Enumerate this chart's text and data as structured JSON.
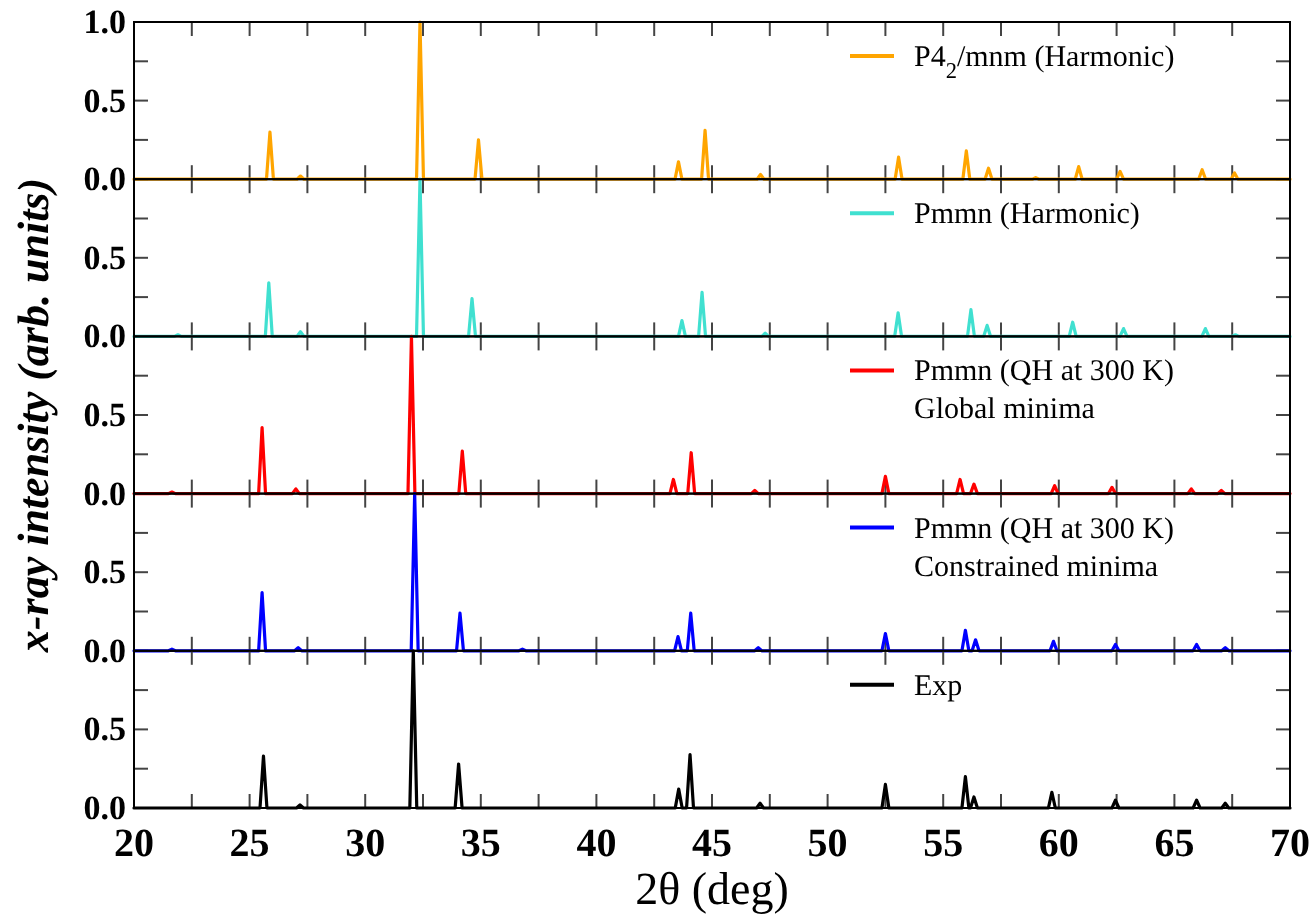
{
  "chart_data": [
    {
      "type": "line",
      "xlim": [
        20,
        70
      ],
      "xticks": [
        20,
        {
          "value": 22.5,
          "label": null
        },
        25,
        {
          "value": 27.5,
          "label": null
        },
        30,
        {
          "value": 32.5,
          "label": null
        },
        35,
        {
          "value": 37.5,
          "label": null
        },
        40,
        {
          "value": 42.5,
          "label": null
        },
        45,
        {
          "value": 47.5,
          "label": null
        },
        50,
        {
          "value": 52.5,
          "label": null
        },
        55,
        {
          "value": 57.5,
          "label": null
        },
        60,
        {
          "value": 62.5,
          "label": null
        },
        65,
        {
          "value": 67.5,
          "label": null
        },
        70
      ],
      "ylim": [
        0,
        1
      ],
      "yticks": [
        {
          "value": 0,
          "label": "0.0"
        },
        {
          "value": 0.25,
          "label": null
        },
        {
          "value": 0.5,
          "label": "0.5"
        },
        {
          "value": 0.75,
          "label": null
        },
        {
          "value": 1,
          "label": "1.0"
        }
      ],
      "tick_labels": "y",
      "legend": "top right",
      "series": [
        {
          "name": "P4$_{2}$/mnm (Harmonic)",
          "color": "#ffa500",
          "x": [
            20,
            25.73,
            25.88,
            26.03,
            27.05,
            27.2,
            27.35,
            32.22,
            32.37,
            32.52,
            34.75,
            34.9,
            35.05,
            43.4,
            43.55,
            43.7,
            44.55,
            44.7,
            44.85,
            46.95,
            47.1,
            47.25,
            52.92,
            53.07,
            53.22,
            55.85,
            56.0,
            56.15,
            56.81,
            56.96,
            57.11,
            58.85,
            59.0,
            59.15,
            60.71,
            60.86,
            61.01,
            62.5,
            62.65,
            62.8,
            66.05,
            66.2,
            66.35,
            67.45,
            67.6,
            67.75,
            70
          ],
          "values": [
            0,
            0,
            0.3,
            0,
            0,
            0.02,
            0,
            0,
            1.0,
            0,
            0,
            0.25,
            0,
            0,
            0.11,
            0,
            0,
            0.31,
            0,
            0,
            0.03,
            0,
            0,
            0.14,
            0,
            0,
            0.18,
            0,
            0,
            0.07,
            0,
            0,
            0.01,
            0,
            0,
            0.08,
            0,
            0,
            0.05,
            0,
            0,
            0.06,
            0,
            0,
            0.04,
            0,
            0
          ]
        }
      ]
    },
    {
      "type": "line",
      "xlim": [
        20,
        70
      ],
      "xticks": [
        20,
        {
          "value": 22.5,
          "label": null
        },
        25,
        {
          "value": 27.5,
          "label": null
        },
        30,
        {
          "value": 32.5,
          "label": null
        },
        35,
        {
          "value": 37.5,
          "label": null
        },
        40,
        {
          "value": 42.5,
          "label": null
        },
        45,
        {
          "value": 47.5,
          "label": null
        },
        50,
        {
          "value": 52.5,
          "label": null
        },
        55,
        {
          "value": 57.5,
          "label": null
        },
        60,
        {
          "value": 62.5,
          "label": null
        },
        65,
        {
          "value": 67.5,
          "label": null
        },
        70
      ],
      "ylim": [
        0,
        1
      ],
      "yticks": [
        {
          "value": 0,
          "label": "0.0"
        },
        {
          "value": 0.25,
          "label": null
        },
        {
          "value": 0.5,
          "label": "0.5"
        },
        {
          "value": 0.75,
          "label": null
        }
      ],
      "tick_labels": "y",
      "legend": "top right",
      "series": [
        {
          "name": "Pmmn (Harmonic)",
          "color": "#40e0d0",
          "x": [
            20,
            21.75,
            21.9,
            22.05,
            25.68,
            25.83,
            25.98,
            27.05,
            27.2,
            27.35,
            32.22,
            32.37,
            32.52,
            34.47,
            34.62,
            34.77,
            43.55,
            43.7,
            43.85,
            44.42,
            44.57,
            44.72,
            47.15,
            47.3,
            47.45,
            52.9,
            53.05,
            53.2,
            56.05,
            56.2,
            56.35,
            56.75,
            56.9,
            57.05,
            60.45,
            60.6,
            60.75,
            62.65,
            62.8,
            62.95,
            66.19,
            66.34,
            66.49,
            67.49,
            67.64,
            67.79,
            70
          ],
          "values": [
            0,
            0,
            0.01,
            0,
            0,
            0.34,
            0,
            0,
            0.03,
            0,
            0,
            1.0,
            0,
            0,
            0.24,
            0,
            0,
            0.1,
            0,
            0,
            0.28,
            0,
            0,
            0.02,
            0,
            0,
            0.15,
            0,
            0,
            0.17,
            0,
            0,
            0.07,
            0,
            0,
            0.09,
            0,
            0,
            0.05,
            0,
            0,
            0.05,
            0,
            0,
            0.01,
            0,
            0
          ]
        }
      ]
    },
    {
      "type": "line",
      "ylabel": "x-ray intensity (arb. units)",
      "xlim": [
        20,
        70
      ],
      "xticks": [
        20,
        {
          "value": 22.5,
          "label": null
        },
        25,
        {
          "value": 27.5,
          "label": null
        },
        30,
        {
          "value": 32.5,
          "label": null
        },
        35,
        {
          "value": 37.5,
          "label": null
        },
        40,
        {
          "value": 42.5,
          "label": null
        },
        45,
        {
          "value": 47.5,
          "label": null
        },
        50,
        {
          "value": 52.5,
          "label": null
        },
        55,
        {
          "value": 57.5,
          "label": null
        },
        60,
        {
          "value": 62.5,
          "label": null
        },
        65,
        {
          "value": 67.5,
          "label": null
        },
        70
      ],
      "ylim": [
        0,
        1
      ],
      "yticks": [
        {
          "value": 0,
          "label": "0.0"
        },
        {
          "value": 0.25,
          "label": null
        },
        {
          "value": 0.5,
          "label": "0.5"
        },
        {
          "value": 0.75,
          "label": null
        }
      ],
      "tick_labels": "y",
      "legend": "top right",
      "series": [
        {
          "name": "Pmmn (QH at 300 K)\nGlobal minima",
          "color": "#ff0000",
          "x": [
            20,
            21.49,
            21.64,
            21.79,
            25.39,
            25.54,
            25.69,
            26.85,
            27.0,
            27.15,
            31.85,
            32.0,
            32.15,
            34.05,
            34.2,
            34.35,
            43.18,
            43.33,
            43.48,
            43.95,
            44.1,
            44.25,
            46.7,
            46.85,
            47.0,
            52.35,
            52.5,
            52.65,
            55.58,
            55.73,
            55.88,
            56.18,
            56.33,
            56.48,
            59.67,
            59.82,
            59.97,
            62.15,
            62.3,
            62.45,
            65.58,
            65.73,
            65.88,
            66.88,
            67.03,
            67.18,
            70
          ],
          "values": [
            0,
            0,
            0.01,
            0,
            0,
            0.42,
            0,
            0,
            0.03,
            0,
            0,
            1.0,
            0,
            0,
            0.27,
            0,
            0,
            0.09,
            0,
            0,
            0.26,
            0,
            0,
            0.02,
            0,
            0,
            0.11,
            0,
            0,
            0.09,
            0,
            0,
            0.06,
            0,
            0,
            0.05,
            0,
            0,
            0.04,
            0,
            0,
            0.03,
            0,
            0,
            0.02,
            0,
            0
          ]
        }
      ]
    },
    {
      "type": "line",
      "xlim": [
        20,
        70
      ],
      "xticks": [
        20,
        {
          "value": 22.5,
          "label": null
        },
        25,
        {
          "value": 27.5,
          "label": null
        },
        30,
        {
          "value": 32.5,
          "label": null
        },
        35,
        {
          "value": 37.5,
          "label": null
        },
        40,
        {
          "value": 42.5,
          "label": null
        },
        45,
        {
          "value": 47.5,
          "label": null
        },
        50,
        {
          "value": 52.5,
          "label": null
        },
        55,
        {
          "value": 57.5,
          "label": null
        },
        60,
        {
          "value": 62.5,
          "label": null
        },
        65,
        {
          "value": 67.5,
          "label": null
        },
        70
      ],
      "ylim": [
        0,
        1
      ],
      "yticks": [
        {
          "value": 0,
          "label": "0.0"
        },
        {
          "value": 0.25,
          "label": null
        },
        {
          "value": 0.5,
          "label": "0.5"
        },
        {
          "value": 0.75,
          "label": null
        }
      ],
      "tick_labels": "y",
      "legend": "top right",
      "series": [
        {
          "name": "Pmmn (QH at 300 K)\nConstrained minima",
          "color": "#0000ff",
          "x": [
            20,
            21.49,
            21.64,
            21.79,
            25.39,
            25.54,
            25.69,
            26.95,
            27.1,
            27.25,
            31.99,
            32.14,
            32.29,
            33.95,
            34.1,
            34.25,
            36.65,
            36.8,
            36.95,
            43.38,
            43.53,
            43.68,
            43.93,
            44.08,
            44.23,
            46.85,
            47.0,
            47.15,
            52.35,
            52.5,
            52.65,
            55.81,
            55.96,
            56.11,
            56.25,
            56.4,
            56.55,
            59.62,
            59.77,
            59.92,
            62.3,
            62.45,
            62.6,
            65.81,
            65.96,
            66.11,
            67.05,
            67.2,
            67.35,
            70
          ],
          "values": [
            0,
            0,
            0.01,
            0,
            0,
            0.37,
            0,
            0,
            0.02,
            0,
            0,
            1.0,
            0,
            0,
            0.24,
            0,
            0,
            0.01,
            0,
            0,
            0.09,
            0,
            0,
            0.24,
            0,
            0,
            0.02,
            0,
            0,
            0.11,
            0,
            0,
            0.13,
            0,
            0,
            0.07,
            0,
            0,
            0.06,
            0,
            0,
            0.04,
            0,
            0,
            0.04,
            0,
            0,
            0.02,
            0,
            0
          ]
        }
      ]
    },
    {
      "type": "line",
      "xlabel": "2θ (deg)",
      "xlim": [
        20,
        70
      ],
      "xticks": [
        20,
        {
          "value": 22.5,
          "label": null
        },
        25,
        {
          "value": 27.5,
          "label": null
        },
        30,
        {
          "value": 32.5,
          "label": null
        },
        35,
        {
          "value": 37.5,
          "label": null
        },
        40,
        {
          "value": 42.5,
          "label": null
        },
        45,
        {
          "value": 47.5,
          "label": null
        },
        50,
        {
          "value": 52.5,
          "label": null
        },
        55,
        {
          "value": 57.5,
          "label": null
        },
        60,
        {
          "value": 62.5,
          "label": null
        },
        65,
        {
          "value": 67.5,
          "label": null
        },
        70
      ],
      "ylim": [
        0,
        1
      ],
      "yticks": [
        {
          "value": 0,
          "label": "0.0"
        },
        {
          "value": 0.25,
          "label": null
        },
        {
          "value": 0.5,
          "label": "0.5"
        },
        {
          "value": 0.75,
          "label": null
        }
      ],
      "legend": "top right",
      "series": [
        {
          "name": "Exp",
          "color": "#000000",
          "x": [
            20,
            25.45,
            25.6,
            25.75,
            27.03,
            27.18,
            27.33,
            31.93,
            32.08,
            32.23,
            33.89,
            34.04,
            34.19,
            43.41,
            43.56,
            43.71,
            43.9,
            44.05,
            44.2,
            46.93,
            47.08,
            47.23,
            52.35,
            52.5,
            52.65,
            55.81,
            55.96,
            56.11,
            56.18,
            56.33,
            56.48,
            59.55,
            59.7,
            59.85,
            62.3,
            62.45,
            62.6,
            65.81,
            65.96,
            66.11,
            67.05,
            67.2,
            67.35,
            70
          ],
          "values": [
            0,
            0,
            0.33,
            0,
            0,
            0.02,
            0,
            0,
            1.0,
            0,
            0,
            0.28,
            0,
            0,
            0.12,
            0,
            0,
            0.34,
            0,
            0,
            0.03,
            0,
            0,
            0.15,
            0,
            0,
            0.2,
            0,
            0,
            0.07,
            0,
            0,
            0.1,
            0,
            0,
            0.05,
            0,
            0,
            0.05,
            0,
            0,
            0.03,
            0,
            0
          ]
        }
      ]
    }
  ]
}
